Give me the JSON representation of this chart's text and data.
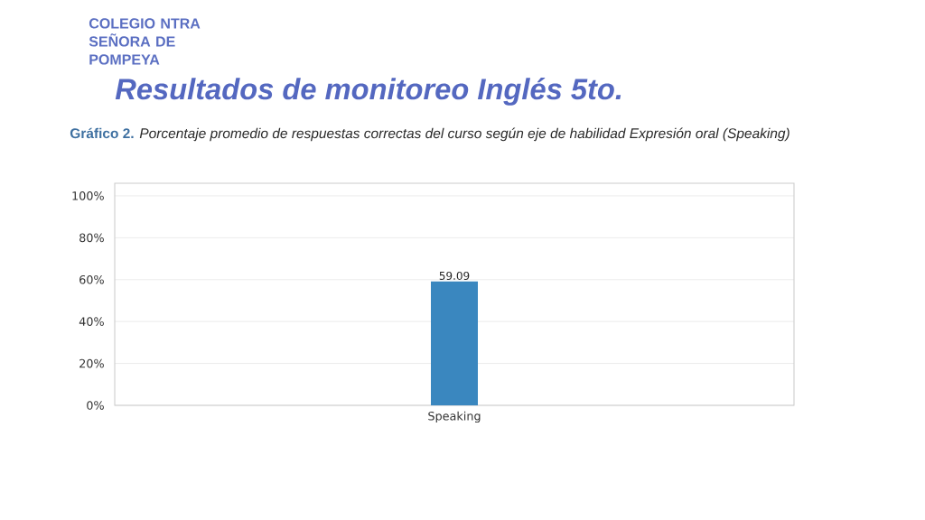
{
  "chart_data": {
    "type": "bar",
    "title": "Resultados de monitoreo Inglés 5to.",
    "subtitle": "**Gráfico 2.** *Porcentaje promedio de respuestas correctas del curso según eje de habilidad Expresión oral (Speaking)*",
    "annotations": [
      "COLEGIO NTRA SEÑORA DE POMPEYA"
    ],
    "categories": [
      "Speaking"
    ],
    "values": [
      59.09
    ],
    "color": "#3a87bf",
    "data_labels": true,
    "ylim": [
      0,
      106
    ],
    "yticks": [
      {
        "value": 0,
        "label": "0%"
      },
      {
        "value": 20,
        "label": "20%"
      },
      {
        "value": 40,
        "label": "40%"
      },
      {
        "value": 60,
        "label": "60%"
      },
      {
        "value": 80,
        "label": "80%"
      },
      {
        "value": 100,
        "label": "100%"
      }
    ],
    "grid": "y"
  }
}
